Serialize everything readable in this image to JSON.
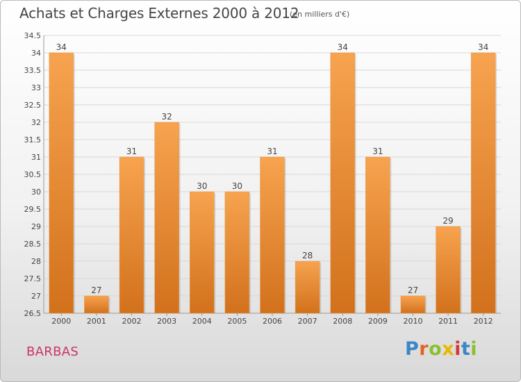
{
  "header": {
    "title": "Achats et Charges Externes 2000 à 2012",
    "subtitle": "(en milliers d'€)"
  },
  "footer": {
    "commune": "BARBAS",
    "logo_text": "Proxiti"
  },
  "colors": {
    "bar_light": "#f7a34f",
    "bar_dark": "#d2711c",
    "commune_text": "#cc3366",
    "logo_letters": [
      "#3a86c8",
      "#e2651f",
      "#8cbf2f",
      "#e6b800",
      "#d63a3a",
      "#3a86c8",
      "#8cbf2f"
    ]
  },
  "chart_data": {
    "type": "bar",
    "title": "Achats et Charges Externes 2000 à 2012",
    "subtitle": "(en milliers d'€)",
    "categories": [
      "2000",
      "2001",
      "2002",
      "2003",
      "2004",
      "2005",
      "2006",
      "2007",
      "2008",
      "2009",
      "2010",
      "2011",
      "2012"
    ],
    "values": [
      34,
      27,
      31,
      32,
      30,
      30,
      31,
      28,
      34,
      31,
      27,
      29,
      34
    ],
    "ylim": [
      26.5,
      34.5
    ],
    "yticks": [
      "26.5",
      "27",
      "27.5",
      "28",
      "28.5",
      "29",
      "29.5",
      "30",
      "30.5",
      "31",
      "31.5",
      "32",
      "32.5",
      "33",
      "33.5",
      "34",
      "34.5"
    ],
    "grid": true,
    "legend": "none"
  }
}
